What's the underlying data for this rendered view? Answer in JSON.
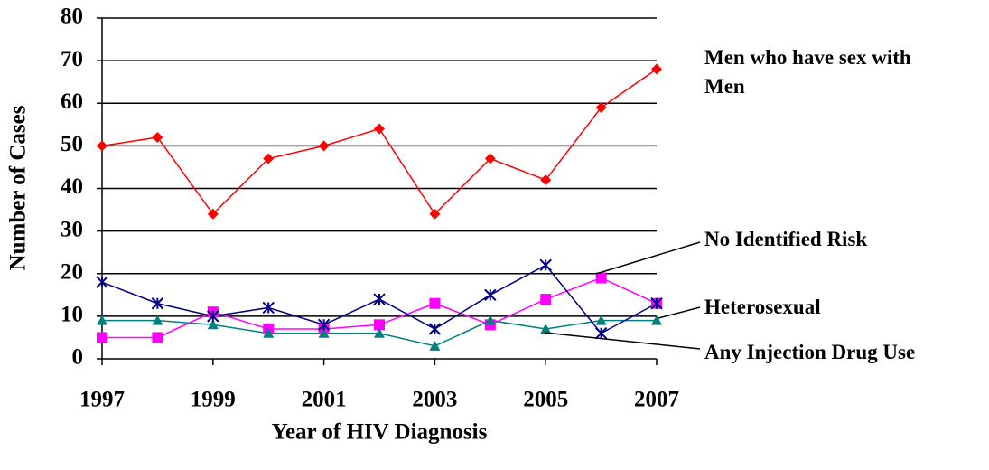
{
  "chart_data": {
    "type": "line",
    "xlabel": "Year of HIV Diagnosis",
    "ylabel": "Number of Cases",
    "x": [
      1997,
      1998,
      1999,
      2000,
      2001,
      2002,
      2003,
      2004,
      2005,
      2006,
      2007
    ],
    "series": [
      {
        "name": "Men who have sex with Men",
        "color": "#ff0000",
        "marker": "diamond",
        "values": [
          50,
          52,
          34,
          47,
          50,
          54,
          34,
          47,
          42,
          59,
          68
        ]
      },
      {
        "name": "No Identified Risk",
        "color": "#ff00ff",
        "marker": "square",
        "values": [
          5,
          5,
          11,
          7,
          7,
          8,
          13,
          8,
          14,
          19,
          13
        ]
      },
      {
        "name": "Heterosexual",
        "color": "#008080",
        "marker": "triangle",
        "values": [
          9,
          9,
          8,
          6,
          6,
          6,
          3,
          9,
          7,
          9,
          9
        ]
      },
      {
        "name": "Any Injection Drug Use",
        "color": "#000080",
        "marker": "x",
        "values": [
          18,
          13,
          10,
          12,
          8,
          14,
          7,
          15,
          22,
          6,
          13
        ]
      }
    ],
    "xlim": [
      1997,
      2007
    ],
    "xticks": [
      1997,
      1999,
      2001,
      2003,
      2005,
      2007
    ],
    "ylim": [
      0,
      80
    ],
    "yticks": [
      0,
      10,
      20,
      30,
      40,
      50,
      60,
      70,
      80
    ],
    "grid": true
  }
}
